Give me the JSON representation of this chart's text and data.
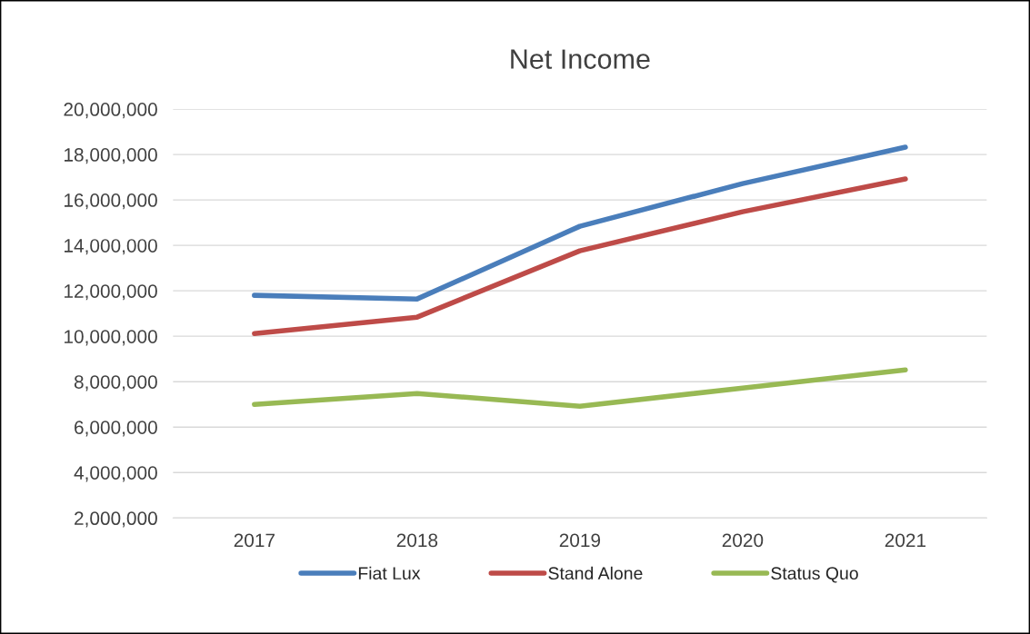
{
  "chart_data": {
    "type": "line",
    "title": "Net Income",
    "categories": [
      "2017",
      "2018",
      "2019",
      "2020",
      "2021"
    ],
    "series": [
      {
        "name": "Fiat Lux",
        "color": "#4a7ebb",
        "values": [
          11800000,
          11640000,
          14840000,
          16720000,
          18320000
        ]
      },
      {
        "name": "Stand Alone",
        "color": "#be4b48",
        "values": [
          10120000,
          10840000,
          13760000,
          15480000,
          16920000
        ]
      },
      {
        "name": "Status Quo",
        "color": "#98b954",
        "values": [
          7000000,
          7480000,
          6920000,
          7720000,
          8520000
        ]
      }
    ],
    "ylim": [
      2000000,
      20000000
    ],
    "yticks": [
      {
        "value": 2000000,
        "label": "2,000,000"
      },
      {
        "value": 4000000,
        "label": "4,000,000"
      },
      {
        "value": 6000000,
        "label": "6,000,000"
      },
      {
        "value": 8000000,
        "label": "8,000,000"
      },
      {
        "value": 10000000,
        "label": "10,000,000"
      },
      {
        "value": 12000000,
        "label": "12,000,000"
      },
      {
        "value": 14000000,
        "label": "14,000,000"
      },
      {
        "value": 16000000,
        "label": "16,000,000"
      },
      {
        "value": 18000000,
        "label": "18,000,000"
      },
      {
        "value": 20000000,
        "label": "20,000,000"
      }
    ],
    "grid": "y",
    "legend": "bottom",
    "marker": "none",
    "line_style": "solid"
  }
}
